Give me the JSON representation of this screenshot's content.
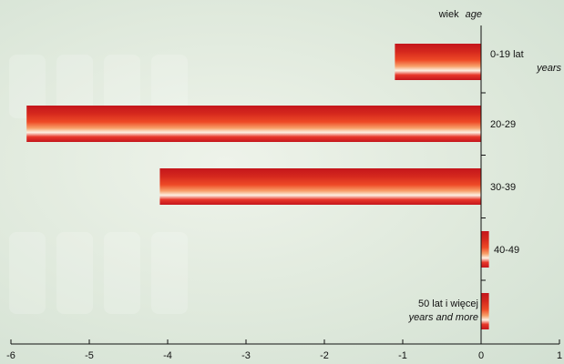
{
  "chart_data": {
    "type": "bar",
    "orientation": "horizontal",
    "axis_header": {
      "label": "wiek",
      "label_en": "age"
    },
    "categories": [
      {
        "label": "0-19 lat",
        "label_en": "years",
        "value": -1.1
      },
      {
        "label": "20-29",
        "label_en": "",
        "value": -5.8
      },
      {
        "label": "30-39",
        "label_en": "",
        "value": -4.1
      },
      {
        "label": "40-49",
        "label_en": "",
        "value": 0.1
      },
      {
        "label": "50 lat i więcej",
        "label_en": "years and  more",
        "value": 0.1
      }
    ],
    "xlim": [
      -6,
      1
    ],
    "xticks": [
      "-6",
      "-5",
      "-4",
      "-3",
      "-2",
      "-1",
      "0",
      "1"
    ],
    "grid": false,
    "bar_colors": {
      "dark": "#c4161c",
      "mid": "#ee3a24",
      "light": "#fdf1e4"
    }
  }
}
